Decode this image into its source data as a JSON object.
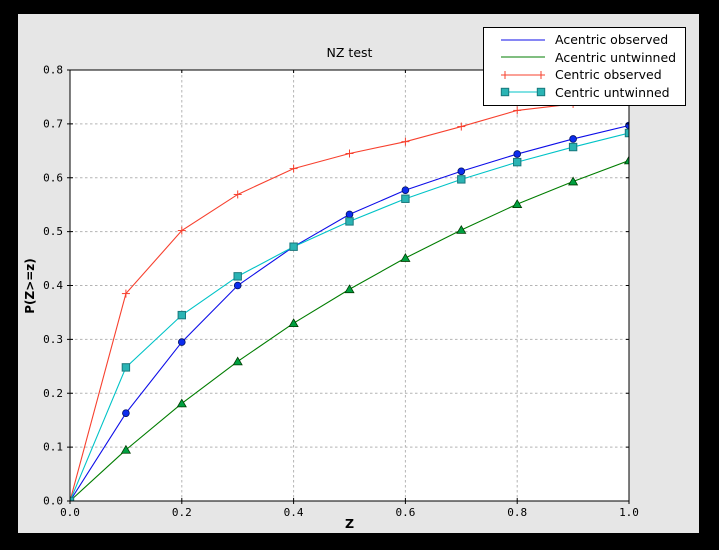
{
  "window": {
    "outer_background": "#000000",
    "figure_background": "#e6e6e6",
    "plot_background": "#ffffff",
    "grid_color": "#b4b4b4",
    "spine_color": "#000000",
    "tick_label_color": "#000000"
  },
  "chart_data": {
    "type": "line",
    "title": "NZ test",
    "xlabel": "Z",
    "ylabel": "P(Z>=z)",
    "xlim": [
      0.0,
      1.0
    ],
    "ylim": [
      0.0,
      0.8
    ],
    "x_ticks": [
      0.0,
      0.2,
      0.4,
      0.6,
      0.8,
      1.0
    ],
    "x_tick_labels": [
      "0.0",
      "0.2",
      "0.4",
      "0.6",
      "0.8",
      "1.0"
    ],
    "y_ticks": [
      0.0,
      0.1,
      0.2,
      0.3,
      0.4,
      0.5,
      0.6,
      0.7,
      0.8
    ],
    "y_tick_labels": [
      "0.0",
      "0.1",
      "0.2",
      "0.3",
      "0.4",
      "0.5",
      "0.6",
      "0.7",
      "0.8"
    ],
    "grid": true,
    "legend_position": "upper right",
    "x": [
      0.0,
      0.1,
      0.2,
      0.3,
      0.4,
      0.5,
      0.6,
      0.7,
      0.8,
      0.9,
      1.0
    ],
    "series": [
      {
        "name": "Acentric observed",
        "color": "#0d0de8",
        "marker": "circle",
        "marker_fill": "#0c2cee",
        "marker_edge": "#001060",
        "legend_markers": false,
        "values": [
          0.0,
          0.163,
          0.295,
          0.4,
          0.472,
          0.532,
          0.577,
          0.612,
          0.644,
          0.672,
          0.697
        ]
      },
      {
        "name": "Acentric untwinned",
        "color": "#007d00",
        "marker": "triangle",
        "marker_fill": "#00a040",
        "marker_edge": "#003c00",
        "legend_markers": false,
        "values": [
          0.0,
          0.095,
          0.181,
          0.259,
          0.33,
          0.393,
          0.451,
          0.503,
          0.551,
          0.593,
          0.632
        ]
      },
      {
        "name": "Centric observed",
        "color": "#f7402e",
        "marker": "plus",
        "marker_fill": "#f7402e",
        "marker_edge": "#f7402e",
        "legend_markers": true,
        "values": [
          0.0,
          0.385,
          0.502,
          0.569,
          0.617,
          0.645,
          0.667,
          0.695,
          0.725,
          0.737,
          0.752
        ]
      },
      {
        "name": "Centric untwinned",
        "color": "#00c3c7",
        "marker": "square",
        "marker_fill": "#2ab4b4",
        "marker_edge": "#19787c",
        "legend_markers": true,
        "values": [
          0.0,
          0.248,
          0.345,
          0.417,
          0.472,
          0.519,
          0.561,
          0.597,
          0.629,
          0.657,
          0.683
        ]
      }
    ]
  }
}
